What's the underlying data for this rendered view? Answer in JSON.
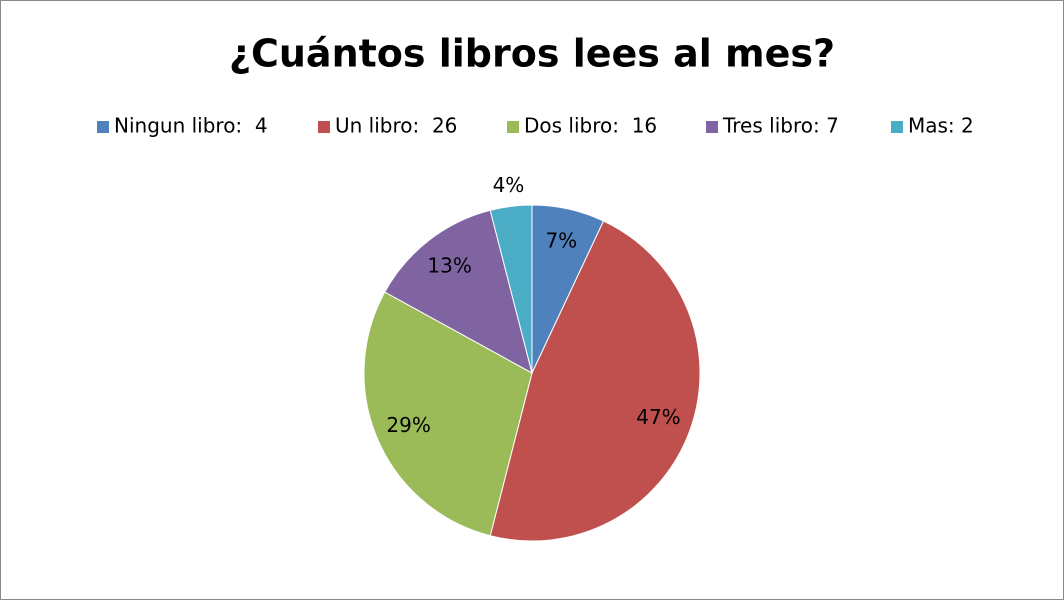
{
  "chart_data": {
    "type": "pie",
    "title": "¿Cuántos libros lees al mes?",
    "categories": [
      "Ningun libro:  4",
      "Un libro:  26",
      "Dos libro:  16",
      "Tres libro: 7",
      "Mas: 2"
    ],
    "values": [
      7,
      47,
      29,
      13,
      4
    ],
    "value_labels": [
      "7%",
      "47%",
      "29%",
      "13%",
      "4%"
    ],
    "colors": [
      "#4f81bd",
      "#c0504d",
      "#9bbb59",
      "#8064a2",
      "#4bacc6"
    ],
    "legend": "top"
  }
}
